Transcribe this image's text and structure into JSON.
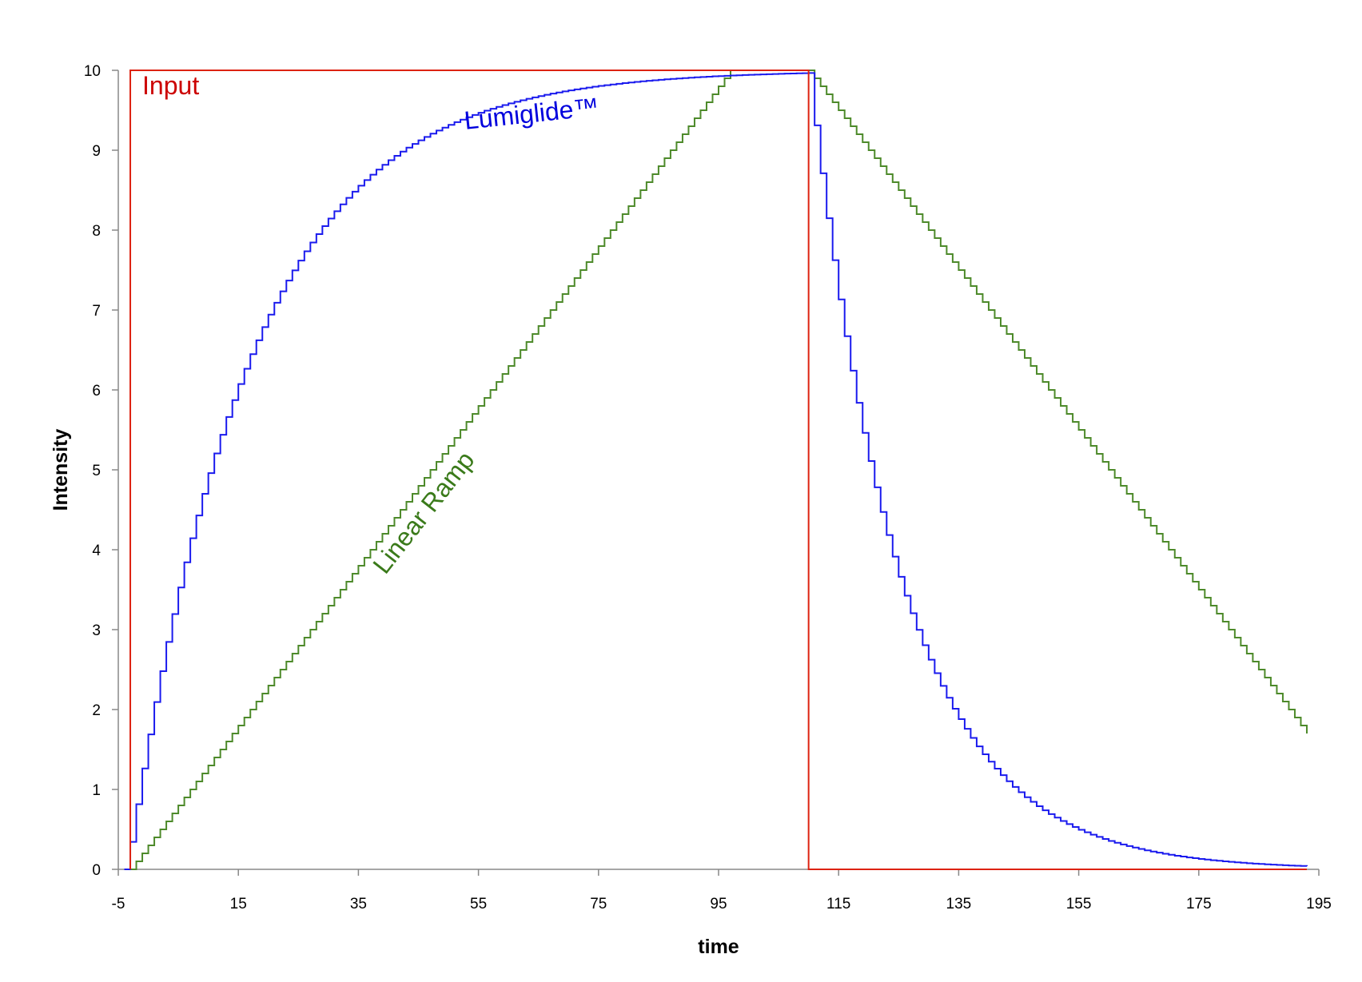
{
  "chart_data": {
    "type": "line",
    "title": "",
    "xlabel": "time",
    "ylabel": "Intensity",
    "xlim": [
      -5,
      195
    ],
    "ylim": [
      0,
      10
    ],
    "x_ticks": [
      -5,
      15,
      35,
      55,
      75,
      95,
      115,
      135,
      155,
      175,
      195
    ],
    "y_ticks": [
      0,
      1,
      2,
      3,
      4,
      5,
      6,
      7,
      8,
      9,
      10
    ],
    "grid": false,
    "legend": "none",
    "annotations": [
      {
        "text": "Input",
        "color": "#cc0000",
        "series": "input",
        "at": [
          -1,
          9.7
        ]
      },
      {
        "text": "Lumiglide™",
        "color": "#0000dd",
        "series": "lumiglide",
        "at": [
          64,
          9.35
        ],
        "rotate": -6
      },
      {
        "text": "Linear Ramp",
        "color": "#3a7a1a",
        "series": "linear",
        "at": [
          47,
          4.4
        ],
        "rotate": -52
      }
    ],
    "series": [
      {
        "id": "input",
        "color": "#dd2211",
        "points": [
          [
            -3,
            0
          ],
          [
            -3,
            10
          ],
          [
            110,
            10
          ],
          [
            110,
            0
          ],
          [
            193,
            0
          ]
        ]
      },
      {
        "id": "lumiglide",
        "color": "#1a1aee",
        "step": 1,
        "model": {
          "type": "exponential",
          "start": -3,
          "end": 110,
          "tail_end": 193,
          "rise_tau": 20,
          "fall_tau": 15,
          "rise_step": 1,
          "fall_step_first": 1.1,
          "saturate_at": 10
        }
      },
      {
        "id": "linear",
        "color": "#4d8a2a",
        "step": 1,
        "model": {
          "type": "ramp",
          "start": -3,
          "end": 110,
          "tail_end": 193,
          "rise_rate": 0.1,
          "fall_rate": 0.1,
          "max": 10
        }
      }
    ]
  }
}
